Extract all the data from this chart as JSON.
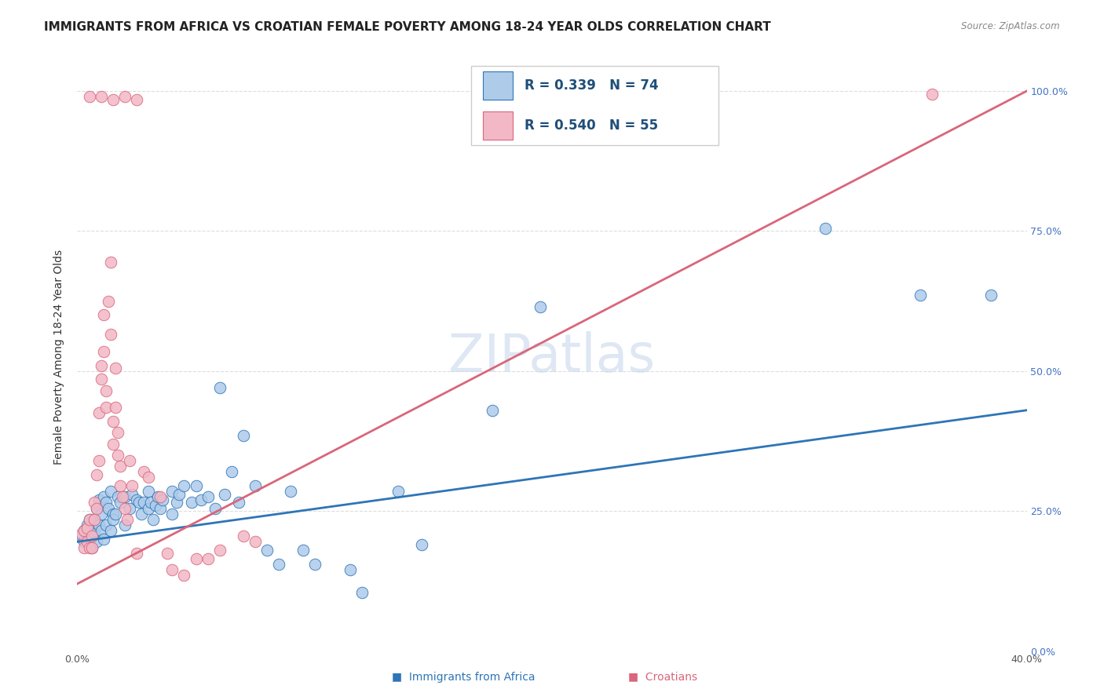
{
  "title": "IMMIGRANTS FROM AFRICA VS CROATIAN FEMALE POVERTY AMONG 18-24 YEAR OLDS CORRELATION CHART",
  "source": "Source: ZipAtlas.com",
  "ylabel": "Female Poverty Among 18-24 Year Olds",
  "xlim": [
    0.0,
    0.4
  ],
  "ylim": [
    0.0,
    1.05
  ],
  "x_ticks": [
    0.0,
    0.1,
    0.2,
    0.3,
    0.4
  ],
  "y_ticks": [
    0.0,
    0.25,
    0.5,
    0.75,
    1.0
  ],
  "y_tick_labels_right": [
    "0.0%",
    "25.0%",
    "50.0%",
    "75.0%",
    "100.0%"
  ],
  "legend_r1": "R = 0.339",
  "legend_n1": "N = 74",
  "legend_r2": "R = 0.540",
  "legend_n2": "N = 55",
  "color_blue": "#AECBEA",
  "color_pink": "#F2B8C6",
  "line_color_blue": "#2E75B6",
  "line_color_pink": "#D9667A",
  "watermark": "ZIPatlas",
  "blue_scatter": [
    [
      0.002,
      0.205
    ],
    [
      0.003,
      0.215
    ],
    [
      0.003,
      0.195
    ],
    [
      0.004,
      0.225
    ],
    [
      0.004,
      0.21
    ],
    [
      0.005,
      0.235
    ],
    [
      0.005,
      0.2
    ],
    [
      0.006,
      0.22
    ],
    [
      0.006,
      0.185
    ],
    [
      0.007,
      0.235
    ],
    [
      0.007,
      0.21
    ],
    [
      0.008,
      0.255
    ],
    [
      0.008,
      0.195
    ],
    [
      0.009,
      0.225
    ],
    [
      0.009,
      0.27
    ],
    [
      0.01,
      0.245
    ],
    [
      0.01,
      0.215
    ],
    [
      0.011,
      0.275
    ],
    [
      0.011,
      0.2
    ],
    [
      0.012,
      0.265
    ],
    [
      0.012,
      0.225
    ],
    [
      0.013,
      0.255
    ],
    [
      0.014,
      0.285
    ],
    [
      0.014,
      0.215
    ],
    [
      0.015,
      0.245
    ],
    [
      0.015,
      0.235
    ],
    [
      0.016,
      0.245
    ],
    [
      0.017,
      0.275
    ],
    [
      0.018,
      0.265
    ],
    [
      0.02,
      0.275
    ],
    [
      0.02,
      0.225
    ],
    [
      0.022,
      0.255
    ],
    [
      0.023,
      0.28
    ],
    [
      0.025,
      0.27
    ],
    [
      0.026,
      0.265
    ],
    [
      0.027,
      0.245
    ],
    [
      0.028,
      0.265
    ],
    [
      0.03,
      0.285
    ],
    [
      0.03,
      0.255
    ],
    [
      0.031,
      0.265
    ],
    [
      0.032,
      0.235
    ],
    [
      0.033,
      0.26
    ],
    [
      0.034,
      0.275
    ],
    [
      0.035,
      0.255
    ],
    [
      0.036,
      0.27
    ],
    [
      0.04,
      0.285
    ],
    [
      0.04,
      0.245
    ],
    [
      0.042,
      0.265
    ],
    [
      0.043,
      0.28
    ],
    [
      0.045,
      0.295
    ],
    [
      0.048,
      0.265
    ],
    [
      0.05,
      0.295
    ],
    [
      0.052,
      0.27
    ],
    [
      0.055,
      0.275
    ],
    [
      0.058,
      0.255
    ],
    [
      0.06,
      0.47
    ],
    [
      0.062,
      0.28
    ],
    [
      0.065,
      0.32
    ],
    [
      0.068,
      0.265
    ],
    [
      0.07,
      0.385
    ],
    [
      0.075,
      0.295
    ],
    [
      0.08,
      0.18
    ],
    [
      0.085,
      0.155
    ],
    [
      0.09,
      0.285
    ],
    [
      0.095,
      0.18
    ],
    [
      0.1,
      0.155
    ],
    [
      0.115,
      0.145
    ],
    [
      0.12,
      0.105
    ],
    [
      0.135,
      0.285
    ],
    [
      0.145,
      0.19
    ],
    [
      0.175,
      0.43
    ],
    [
      0.195,
      0.615
    ],
    [
      0.315,
      0.755
    ],
    [
      0.355,
      0.635
    ],
    [
      0.385,
      0.635
    ]
  ],
  "pink_scatter": [
    [
      0.002,
      0.21
    ],
    [
      0.003,
      0.215
    ],
    [
      0.003,
      0.185
    ],
    [
      0.004,
      0.22
    ],
    [
      0.004,
      0.195
    ],
    [
      0.005,
      0.235
    ],
    [
      0.005,
      0.185
    ],
    [
      0.006,
      0.205
    ],
    [
      0.006,
      0.185
    ],
    [
      0.007,
      0.235
    ],
    [
      0.007,
      0.265
    ],
    [
      0.008,
      0.315
    ],
    [
      0.008,
      0.255
    ],
    [
      0.009,
      0.425
    ],
    [
      0.009,
      0.34
    ],
    [
      0.01,
      0.51
    ],
    [
      0.01,
      0.485
    ],
    [
      0.011,
      0.6
    ],
    [
      0.011,
      0.535
    ],
    [
      0.012,
      0.465
    ],
    [
      0.012,
      0.435
    ],
    [
      0.013,
      0.625
    ],
    [
      0.014,
      0.695
    ],
    [
      0.014,
      0.565
    ],
    [
      0.015,
      0.41
    ],
    [
      0.015,
      0.37
    ],
    [
      0.016,
      0.505
    ],
    [
      0.016,
      0.435
    ],
    [
      0.017,
      0.39
    ],
    [
      0.017,
      0.35
    ],
    [
      0.018,
      0.33
    ],
    [
      0.018,
      0.295
    ],
    [
      0.019,
      0.275
    ],
    [
      0.02,
      0.255
    ],
    [
      0.021,
      0.235
    ],
    [
      0.022,
      0.34
    ],
    [
      0.023,
      0.295
    ],
    [
      0.025,
      0.175
    ],
    [
      0.028,
      0.32
    ],
    [
      0.03,
      0.31
    ],
    [
      0.035,
      0.275
    ],
    [
      0.038,
      0.175
    ],
    [
      0.04,
      0.145
    ],
    [
      0.045,
      0.135
    ],
    [
      0.05,
      0.165
    ],
    [
      0.055,
      0.165
    ],
    [
      0.06,
      0.18
    ],
    [
      0.07,
      0.205
    ],
    [
      0.075,
      0.195
    ],
    [
      0.005,
      0.99
    ],
    [
      0.01,
      0.99
    ],
    [
      0.015,
      0.985
    ],
    [
      0.02,
      0.99
    ],
    [
      0.025,
      0.985
    ],
    [
      0.36,
      0.995
    ]
  ],
  "blue_trend": [
    0.0,
    0.4,
    0.195,
    0.43
  ],
  "pink_trend": [
    0.0,
    0.4,
    0.12,
    1.0
  ],
  "title_fontsize": 11,
  "axis_label_fontsize": 10,
  "tick_fontsize": 9,
  "watermark_fontsize": 48,
  "background_color": "#FFFFFF",
  "grid_color": "#DDDDDD"
}
